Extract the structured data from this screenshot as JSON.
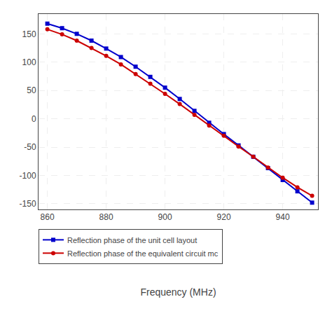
{
  "chart_data": {
    "type": "line",
    "xlabel": "Frequency (MHz)",
    "xlim": [
      857,
      952
    ],
    "ylim": [
      -160,
      185
    ],
    "xticks": [
      860,
      880,
      900,
      920,
      940
    ],
    "yticks": [
      -150,
      -100,
      -50,
      0,
      50,
      100,
      150
    ],
    "grid": true,
    "legend": "below",
    "x": [
      860,
      865,
      870,
      875,
      880,
      885,
      890,
      895,
      900,
      905,
      910,
      915,
      920,
      925,
      930,
      935,
      940,
      945,
      950
    ],
    "series": [
      {
        "name": "Reflection phase of the unit cell layout",
        "color": "#0000cc",
        "marker": "square",
        "line_style": "solid",
        "values": [
          168,
          160,
          150,
          138,
          124,
          109,
          92,
          74,
          55,
          35,
          14,
          -7,
          -27,
          -47,
          -67,
          -87,
          -108,
          -128,
          -148
        ]
      },
      {
        "name": "Reflection phase of the equivalent circuit mc",
        "color": "#cc0000",
        "marker": "circle",
        "line_style": "solid",
        "values": [
          158,
          149,
          138,
          125,
          111,
          96,
          79,
          62,
          44,
          26,
          7,
          -12,
          -30,
          -49,
          -67,
          -86,
          -104,
          -121,
          -136
        ]
      }
    ]
  }
}
